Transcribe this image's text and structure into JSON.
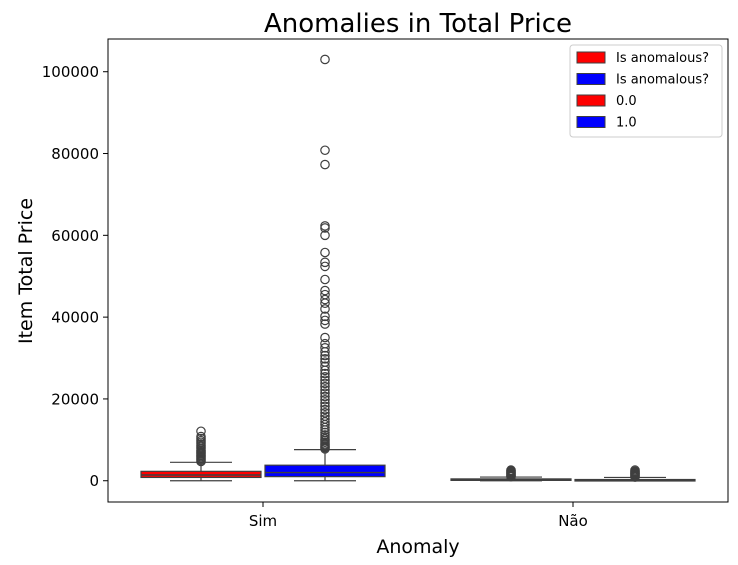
{
  "chart_data": {
    "type": "box",
    "title": "Anomalies in Total Price",
    "xlabel": "Anomaly",
    "ylabel": "Item Total Price",
    "categories": [
      "Sim",
      "Não"
    ],
    "ylim": [
      -5200,
      108000
    ],
    "yticks": [
      0,
      20000,
      40000,
      60000,
      80000,
      100000
    ],
    "ytick_labels": [
      "0",
      "20000",
      "40000",
      "60000",
      "80000",
      "100000"
    ],
    "grid": false,
    "legend": {
      "placement": "top-right",
      "entries": [
        {
          "label": "Is anomalous?",
          "color": "#ff0000"
        },
        {
          "label": "Is anomalous?",
          "color": "#0000ff"
        },
        {
          "label": "0.0",
          "color": "#ff0000"
        },
        {
          "label": "1.0",
          "color": "#0000ff"
        }
      ]
    },
    "series": [
      {
        "name": "0.0",
        "color": "#ff0000",
        "boxes": [
          {
            "category": "Sim",
            "whisker_low": 0,
            "q1": 800,
            "median": 1400,
            "q3": 2300,
            "whisker_high": 4500,
            "outliers": [
              4700,
              5000,
              5300,
              5600,
              5900,
              6200,
              6500,
              6800,
              7100,
              7400,
              7800,
              8200,
              8600,
              9000,
              9400,
              9800,
              10300,
              10800,
              12100
            ]
          },
          {
            "category": "Não",
            "whisker_low": 0,
            "q1": 100,
            "median": 250,
            "q3": 450,
            "whisker_high": 900,
            "outliers": [
              1000,
              1200,
              1400,
              1600,
              1800,
              2000,
              2200,
              2400,
              2600
            ]
          }
        ]
      },
      {
        "name": "1.0",
        "color": "#0000ff",
        "boxes": [
          {
            "category": "Sim",
            "whisker_low": 0,
            "q1": 1000,
            "median": 2000,
            "q3": 3800,
            "whisker_high": 7600,
            "outliers": [
              7800,
              8100,
              8400,
              8700,
              9000,
              9400,
              9800,
              10200,
              10700,
              11200,
              11800,
              12400,
              13000,
              13700,
              14400,
              15100,
              15800,
              16600,
              17400,
              18200,
              19000,
              19800,
              20600,
              21400,
              22200,
              23000,
              23800,
              24600,
              25400,
              26200,
              27000,
              28000,
              29000,
              29800,
              30600,
              31500,
              32500,
              33500,
              35000,
              38300,
              39200,
              40200,
              42000,
              43400,
              44300,
              45500,
              46500,
              49200,
              52400,
              53400,
              55800,
              60000,
              61800,
              62300,
              77300,
              80800,
              103000
            ]
          },
          {
            "category": "Não",
            "whisker_low": 0,
            "q1": 0,
            "median": 100,
            "q3": 300,
            "whisker_high": 800,
            "outliers": [
              900,
              1100,
              1300,
              1500,
              1700,
              1900,
              2100,
              2300,
              2600
            ]
          }
        ]
      }
    ]
  }
}
